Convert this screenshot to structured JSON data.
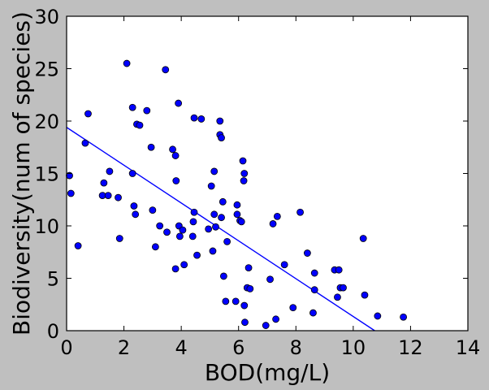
{
  "chart_data": {
    "type": "scatter",
    "title": "",
    "xlabel": "BOD(mg/L)",
    "ylabel": "Biodiversity(num of species)",
    "xlim": [
      0,
      14
    ],
    "ylim": [
      0,
      30
    ],
    "xticks": [
      "0",
      "2",
      "4",
      "6",
      "8",
      "10",
      "12",
      "14"
    ],
    "yticks": [
      "0",
      "5",
      "10",
      "15",
      "20",
      "25",
      "30"
    ],
    "grid": false,
    "legend": "none",
    "colors": {
      "background": "#bfbfbf",
      "plot_area": "#ffffff",
      "marker_fill": "#0000ff",
      "marker_edge": "#000000",
      "fit_line": "#0000ff"
    },
    "series": [
      {
        "kind": "points",
        "points": [
          [
            0.1,
            14.8
          ],
          [
            0.15,
            13.1
          ],
          [
            0.4,
            8.1
          ],
          [
            0.65,
            17.9
          ],
          [
            0.75,
            20.7
          ],
          [
            1.25,
            12.9
          ],
          [
            1.3,
            14.1
          ],
          [
            1.45,
            12.9
          ],
          [
            1.5,
            15.2
          ],
          [
            1.8,
            12.7
          ],
          [
            1.85,
            8.8
          ],
          [
            2.1,
            25.5
          ],
          [
            2.3,
            21.3
          ],
          [
            2.3,
            15.0
          ],
          [
            2.35,
            11.9
          ],
          [
            2.4,
            11.1
          ],
          [
            2.45,
            19.7
          ],
          [
            2.55,
            19.6
          ],
          [
            2.8,
            21.0
          ],
          [
            2.95,
            17.5
          ],
          [
            3.0,
            11.5
          ],
          [
            3.1,
            8.0
          ],
          [
            3.25,
            10.0
          ],
          [
            3.45,
            24.9
          ],
          [
            3.5,
            9.4
          ],
          [
            3.7,
            17.3
          ],
          [
            3.8,
            16.7
          ],
          [
            3.8,
            5.9
          ],
          [
            3.82,
            14.3
          ],
          [
            3.9,
            21.7
          ],
          [
            3.92,
            10.0
          ],
          [
            3.95,
            9.0
          ],
          [
            4.05,
            9.6
          ],
          [
            4.1,
            6.3
          ],
          [
            4.4,
            9.0
          ],
          [
            4.42,
            10.4
          ],
          [
            4.45,
            20.3
          ],
          [
            4.45,
            11.3
          ],
          [
            4.55,
            7.2
          ],
          [
            4.7,
            20.2
          ],
          [
            4.95,
            9.7
          ],
          [
            5.05,
            13.8
          ],
          [
            5.1,
            7.6
          ],
          [
            5.15,
            15.2
          ],
          [
            5.15,
            11.1
          ],
          [
            5.2,
            9.9
          ],
          [
            5.35,
            20.0
          ],
          [
            5.35,
            18.7
          ],
          [
            5.4,
            18.4
          ],
          [
            5.4,
            10.8
          ],
          [
            5.45,
            12.3
          ],
          [
            5.48,
            5.2
          ],
          [
            5.55,
            2.8
          ],
          [
            5.6,
            8.5
          ],
          [
            5.9,
            2.8
          ],
          [
            5.95,
            11.1
          ],
          [
            5.95,
            12.0
          ],
          [
            6.05,
            10.5
          ],
          [
            6.1,
            10.4
          ],
          [
            6.15,
            16.2
          ],
          [
            6.18,
            14.3
          ],
          [
            6.2,
            15.0
          ],
          [
            6.2,
            2.4
          ],
          [
            6.22,
            0.8
          ],
          [
            6.3,
            4.1
          ],
          [
            6.35,
            6.0
          ],
          [
            6.4,
            4.0
          ],
          [
            6.95,
            0.5
          ],
          [
            7.1,
            4.9
          ],
          [
            7.2,
            10.2
          ],
          [
            7.3,
            1.1
          ],
          [
            7.35,
            10.9
          ],
          [
            7.6,
            6.3
          ],
          [
            7.9,
            2.2
          ],
          [
            8.15,
            11.3
          ],
          [
            8.4,
            7.4
          ],
          [
            8.6,
            1.7
          ],
          [
            8.65,
            5.5
          ],
          [
            8.65,
            3.9
          ],
          [
            9.35,
            5.8
          ],
          [
            9.45,
            3.2
          ],
          [
            9.5,
            5.8
          ],
          [
            9.55,
            4.1
          ],
          [
            9.65,
            4.1
          ],
          [
            10.35,
            8.8
          ],
          [
            10.4,
            3.4
          ],
          [
            10.85,
            1.4
          ],
          [
            11.75,
            1.3
          ]
        ]
      },
      {
        "kind": "fit_line",
        "points": [
          [
            0,
            19.4
          ],
          [
            10.75,
            0
          ]
        ]
      }
    ]
  }
}
